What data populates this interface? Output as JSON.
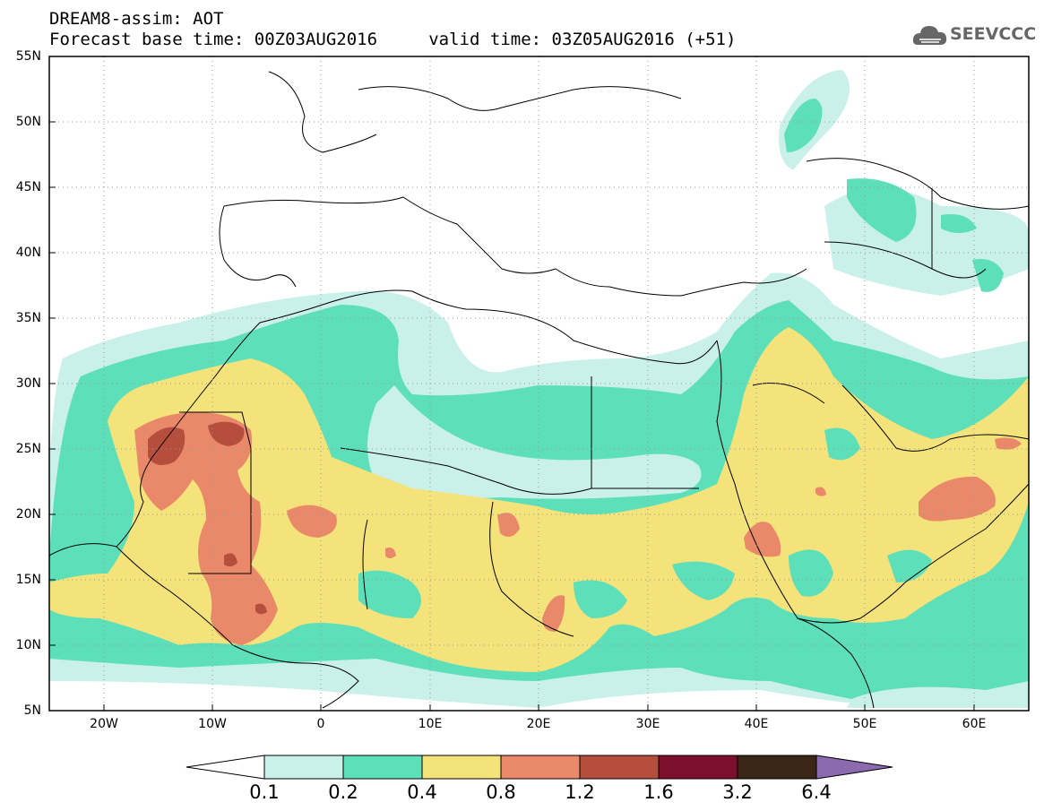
{
  "header": {
    "line1": "DREAM8-assim: AOT",
    "line2": "Forecast base time: 00Z03AUG2016     valid time: 03Z05AUG2016 (+51)"
  },
  "logo": {
    "text": "SEEVCCC",
    "icon": "cloud-icon"
  },
  "map": {
    "lon_range": [
      -25,
      65
    ],
    "lat_range": [
      5,
      55
    ],
    "lat_labels": [
      "55N",
      "50N",
      "45N",
      "40N",
      "35N",
      "30N",
      "25N",
      "20N",
      "15N",
      "10N",
      "5N"
    ],
    "lon_labels": [
      "20W",
      "10W",
      "0",
      "10E",
      "20E",
      "30E",
      "40E",
      "50E",
      "60E"
    ],
    "grid": true
  },
  "colorbar": {
    "labels": [
      "0.1",
      "0.2",
      "0.4",
      "0.8",
      "1.2",
      "1.6",
      "3.2",
      "6.4"
    ],
    "colors": [
      "#ffffff",
      "#c9f0e9",
      "#5ddfb9",
      "#f4e27a",
      "#e9896a",
      "#b64e3e",
      "#7c0f2c",
      "#3a2516",
      "#8d6ab0"
    ]
  },
  "colors": {
    "c01": "#c9f0e9",
    "c02": "#5ddfb9",
    "c04": "#f4e27a",
    "c08": "#e9896a",
    "c12": "#b64e3e",
    "c16": "#7c0f2c"
  }
}
